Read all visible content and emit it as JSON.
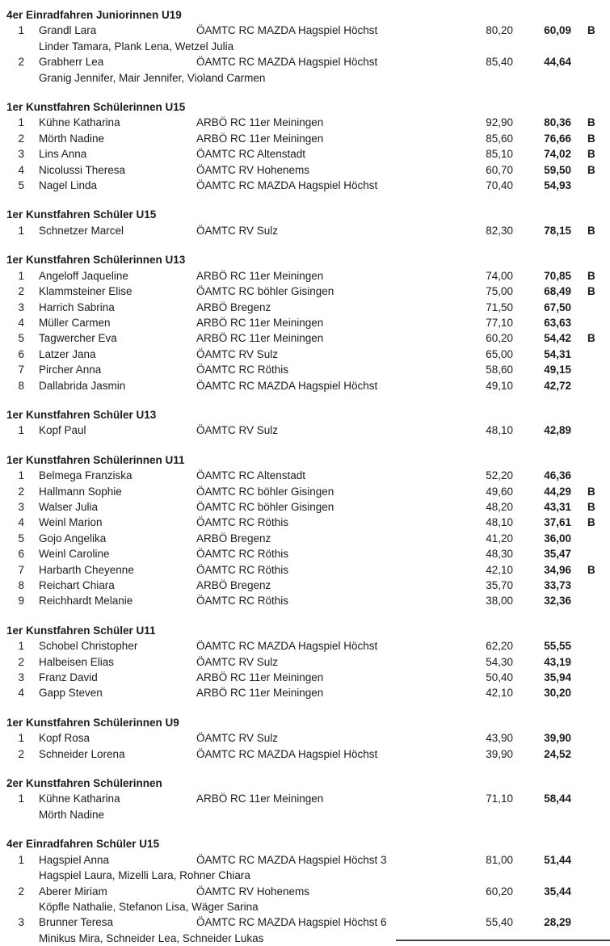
{
  "sections": [
    {
      "title": "4er Einradfahren Juniorinnen U19",
      "rows": [
        {
          "rank": "1",
          "name": "Grandl Lara",
          "club": "ÖAMTC RC MAZDA Hagspiel Höchst",
          "score1": "80,20",
          "score2": "60,09",
          "flag": "B",
          "members": "Linder Tamara, Plank Lena, Wetzel Julia"
        },
        {
          "rank": "2",
          "name": "Grabherr Lea",
          "club": "ÖAMTC RC MAZDA Hagspiel Höchst",
          "score1": "85,40",
          "score2": "44,64",
          "flag": "",
          "members": "Granig Jennifer, Mair Jennifer, Violand Carmen"
        }
      ]
    },
    {
      "title": "1er Kunstfahren Schülerinnen U15",
      "rows": [
        {
          "rank": "1",
          "name": "Kühne Katharina",
          "club": "ARBÖ RC 11er Meiningen",
          "score1": "92,90",
          "score2": "80,36",
          "flag": "B",
          "members": ""
        },
        {
          "rank": "2",
          "name": "Mörth Nadine",
          "club": "ARBÖ RC 11er Meiningen",
          "score1": "85,60",
          "score2": "76,66",
          "flag": "B",
          "members": ""
        },
        {
          "rank": "3",
          "name": "Lins Anna",
          "club": "ÖAMTC RC Altenstadt",
          "score1": "85,10",
          "score2": "74,02",
          "flag": "B",
          "members": ""
        },
        {
          "rank": "4",
          "name": "Nicolussi Theresa",
          "club": "ÖAMTC RV Hohenems",
          "score1": "60,70",
          "score2": "59,50",
          "flag": "B",
          "members": ""
        },
        {
          "rank": "5",
          "name": "Nagel Linda",
          "club": "ÖAMTC RC MAZDA Hagspiel Höchst",
          "score1": "70,40",
          "score2": "54,93",
          "flag": "",
          "members": ""
        }
      ]
    },
    {
      "title": "1er Kunstfahren Schüler U15",
      "rows": [
        {
          "rank": "1",
          "name": "Schnetzer Marcel",
          "club": "ÖAMTC RV Sulz",
          "score1": "82,30",
          "score2": "78,15",
          "flag": "B",
          "members": ""
        }
      ]
    },
    {
      "title": "1er Kunstfahren Schülerinnen U13",
      "rows": [
        {
          "rank": "1",
          "name": "Angeloff Jaqueline",
          "club": "ARBÖ RC 11er Meiningen",
          "score1": "74,00",
          "score2": "70,85",
          "flag": "B",
          "members": ""
        },
        {
          "rank": "2",
          "name": "Klammsteiner Elise",
          "club": "ÖAMTC RC böhler Gisingen",
          "score1": "75,00",
          "score2": "68,49",
          "flag": "B",
          "members": ""
        },
        {
          "rank": "3",
          "name": "Harrich Sabrina",
          "club": "ARBÖ Bregenz",
          "score1": "71,50",
          "score2": "67,50",
          "flag": "",
          "members": ""
        },
        {
          "rank": "4",
          "name": "Müller Carmen",
          "club": "ARBÖ RC 11er Meiningen",
          "score1": "77,10",
          "score2": "63,63",
          "flag": "",
          "members": ""
        },
        {
          "rank": "5",
          "name": "Tagwercher Eva",
          "club": "ARBÖ RC 11er Meiningen",
          "score1": "60,20",
          "score2": "54,42",
          "flag": "B",
          "members": ""
        },
        {
          "rank": "6",
          "name": "Latzer Jana",
          "club": "ÖAMTC RV Sulz",
          "score1": "65,00",
          "score2": "54,31",
          "flag": "",
          "members": ""
        },
        {
          "rank": "7",
          "name": "Pircher Anna",
          "club": "ÖAMTC RC Röthis",
          "score1": "58,60",
          "score2": "49,15",
          "flag": "",
          "members": ""
        },
        {
          "rank": "8",
          "name": "Dallabrida Jasmin",
          "club": "ÖAMTC RC MAZDA Hagspiel Höchst",
          "score1": "49,10",
          "score2": "42,72",
          "flag": "",
          "members": ""
        }
      ]
    },
    {
      "title": "1er Kunstfahren Schüler U13",
      "rows": [
        {
          "rank": "1",
          "name": "Kopf Paul",
          "club": "ÖAMTC RV Sulz",
          "score1": "48,10",
          "score2": "42,89",
          "flag": "",
          "members": ""
        }
      ]
    },
    {
      "title": "1er Kunstfahren Schülerinnen U11",
      "rows": [
        {
          "rank": "1",
          "name": "Belmega Franziska",
          "club": "ÖAMTC RC Altenstadt",
          "score1": "52,20",
          "score2": "46,36",
          "flag": "",
          "members": ""
        },
        {
          "rank": "2",
          "name": "Hallmann Sophie",
          "club": "ÖAMTC RC böhler Gisingen",
          "score1": "49,60",
          "score2": "44,29",
          "flag": "B",
          "members": ""
        },
        {
          "rank": "3",
          "name": "Walser Julia",
          "club": "ÖAMTC RC böhler Gisingen",
          "score1": "48,20",
          "score2": "43,31",
          "flag": "B",
          "members": ""
        },
        {
          "rank": "4",
          "name": "Weinl Marion",
          "club": "ÖAMTC RC Röthis",
          "score1": "48,10",
          "score2": "37,61",
          "flag": "B",
          "members": ""
        },
        {
          "rank": "5",
          "name": "Gojo Angelika",
          "club": "ARBÖ Bregenz",
          "score1": "41,20",
          "score2": "36,00",
          "flag": "",
          "members": ""
        },
        {
          "rank": "6",
          "name": "Weinl Caroline",
          "club": "ÖAMTC RC Röthis",
          "score1": "48,30",
          "score2": "35,47",
          "flag": "",
          "members": ""
        },
        {
          "rank": "7",
          "name": "Harbarth Cheyenne",
          "club": "ÖAMTC RC Röthis",
          "score1": "42,10",
          "score2": "34,96",
          "flag": "B",
          "members": ""
        },
        {
          "rank": "8",
          "name": "Reichart Chiara",
          "club": "ARBÖ Bregenz",
          "score1": "35,70",
          "score2": "33,73",
          "flag": "",
          "members": ""
        },
        {
          "rank": "9",
          "name": "Reichhardt Melanie",
          "club": "ÖAMTC RC Röthis",
          "score1": "38,00",
          "score2": "32,36",
          "flag": "",
          "members": ""
        }
      ]
    },
    {
      "title": "1er Kunstfahren Schüler U11",
      "rows": [
        {
          "rank": "1",
          "name": "Schobel Christopher",
          "club": "ÖAMTC RC MAZDA Hagspiel Höchst",
          "score1": "62,20",
          "score2": "55,55",
          "flag": "",
          "members": ""
        },
        {
          "rank": "2",
          "name": "Halbeisen Elias",
          "club": "ÖAMTC RV Sulz",
          "score1": "54,30",
          "score2": "43,19",
          "flag": "",
          "members": ""
        },
        {
          "rank": "3",
          "name": "Franz David",
          "club": "ARBÖ RC 11er Meiningen",
          "score1": "50,40",
          "score2": "35,94",
          "flag": "",
          "members": ""
        },
        {
          "rank": "4",
          "name": "Gapp Steven",
          "club": "ARBÖ RC 11er Meiningen",
          "score1": "42,10",
          "score2": "30,20",
          "flag": "",
          "members": ""
        }
      ]
    },
    {
      "title": "1er Kunstfahren Schülerinnen U9",
      "rows": [
        {
          "rank": "1",
          "name": "Kopf Rosa",
          "club": "ÖAMTC RV Sulz",
          "score1": "43,90",
          "score2": "39,90",
          "flag": "",
          "members": ""
        },
        {
          "rank": "2",
          "name": "Schneider Lorena",
          "club": "ÖAMTC RC MAZDA Hagspiel Höchst",
          "score1": "39,90",
          "score2": "24,52",
          "flag": "",
          "members": ""
        }
      ]
    },
    {
      "title": "2er Kunstfahren Schülerinnen",
      "rows": [
        {
          "rank": "1",
          "name": "Kühne Katharina",
          "club": "ARBÖ RC 11er Meiningen",
          "score1": "71,10",
          "score2": "58,44",
          "flag": "",
          "members": "Mörth Nadine"
        }
      ]
    },
    {
      "title": "4er Einradfahren Schüler U15",
      "rows": [
        {
          "rank": "1",
          "name": "Hagspiel Anna",
          "club": "ÖAMTC RC MAZDA Hagspiel Höchst 3",
          "score1": "81,00",
          "score2": "51,44",
          "flag": "",
          "members": "Hagspiel Laura, Mizelli Lara, Rohner Chiara"
        },
        {
          "rank": "2",
          "name": "Aberer Miriam",
          "club": "ÖAMTC RV Hohenems",
          "score1": "60,20",
          "score2": "35,44",
          "flag": "",
          "members": "Köpfle Nathalie, Stefanon Lisa, Wäger Sarina"
        },
        {
          "rank": "3",
          "name": "Brunner Teresa",
          "club": "ÖAMTC RC MAZDA Hagspiel Höchst 6",
          "score1": "55,40",
          "score2": "28,29",
          "flag": "",
          "members": "Minikus Mira, Schneider Lea, Schneider Lukas"
        }
      ]
    }
  ]
}
